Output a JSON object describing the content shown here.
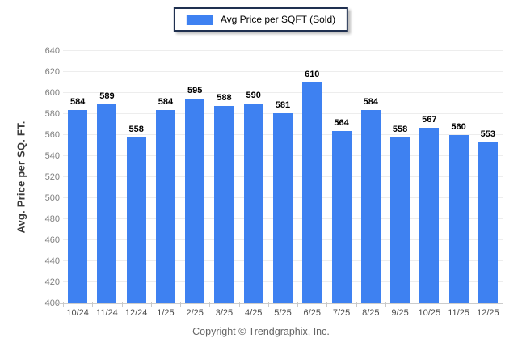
{
  "legend": {
    "label": "Avg Price per SQFT (Sold)",
    "swatch_color": "#3e81f1",
    "border_color": "#1f3050"
  },
  "footer": {
    "copyright": "Copyright © Trendgraphix, Inc."
  },
  "colors": {
    "bar": "#3e81f1",
    "gridline": "#ededed",
    "axis_line": "#cccccc",
    "y_tick_text": "#7f7f7f",
    "x_tick_text": "#4d4d4d",
    "value_label_text": "#000000"
  },
  "chart_data": {
    "type": "bar",
    "title": "",
    "categories": [
      "10/24",
      "11/24",
      "12/24",
      "1/25",
      "2/25",
      "3/25",
      "4/25",
      "5/25",
      "6/25",
      "7/25",
      "8/25",
      "9/25",
      "10/25",
      "11/25",
      "12/25"
    ],
    "values": [
      584,
      589,
      558,
      584,
      595,
      588,
      590,
      581,
      610,
      564,
      584,
      558,
      567,
      560,
      553
    ],
    "series_name": "Avg Price per SQFT (Sold)",
    "xlabel": "",
    "ylabel": "Avg. Price per SQ. FT.",
    "ylim": [
      400,
      640
    ],
    "ytick_step": 20,
    "yticks": [
      400,
      420,
      440,
      460,
      480,
      500,
      520,
      540,
      560,
      580,
      600,
      620,
      640
    ],
    "grid": true,
    "value_labels": true,
    "legend_position": "top-center"
  }
}
